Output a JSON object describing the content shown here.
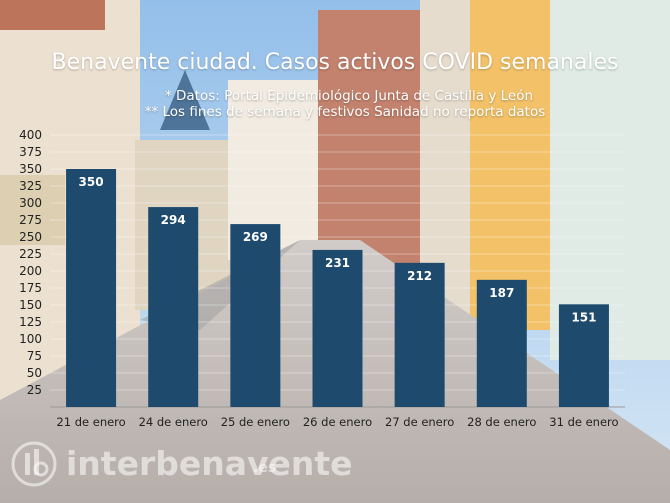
{
  "header": {
    "title": "Benavente ciudad. Casos activos COVID semanales",
    "note1": "* Datos: Portal Epidemiológico Junta de Castilla y León",
    "note2": "** Los fines de semana y festivos Sanidad no reporta datos"
  },
  "brand": {
    "name": "interbenavente",
    "tld": ".es"
  },
  "colors": {
    "bar": "#1d4a6d",
    "label": "#ffffff",
    "axis_text": "#222222"
  },
  "chart_data": {
    "type": "bar",
    "title": "Benavente ciudad. Casos activos COVID semanales",
    "categories": [
      "21 de enero",
      "24 de enero",
      "25 de enero",
      "26 de enero",
      "27 de enero",
      "28 de enero",
      "31 de enero"
    ],
    "values": [
      350,
      294,
      269,
      231,
      212,
      187,
      151
    ],
    "ylim": [
      0,
      400
    ],
    "yticks": [
      25,
      50,
      75,
      100,
      125,
      150,
      175,
      200,
      225,
      250,
      275,
      300,
      325,
      350,
      375,
      400
    ],
    "data_labels": true,
    "grid": true,
    "legend": "none"
  }
}
